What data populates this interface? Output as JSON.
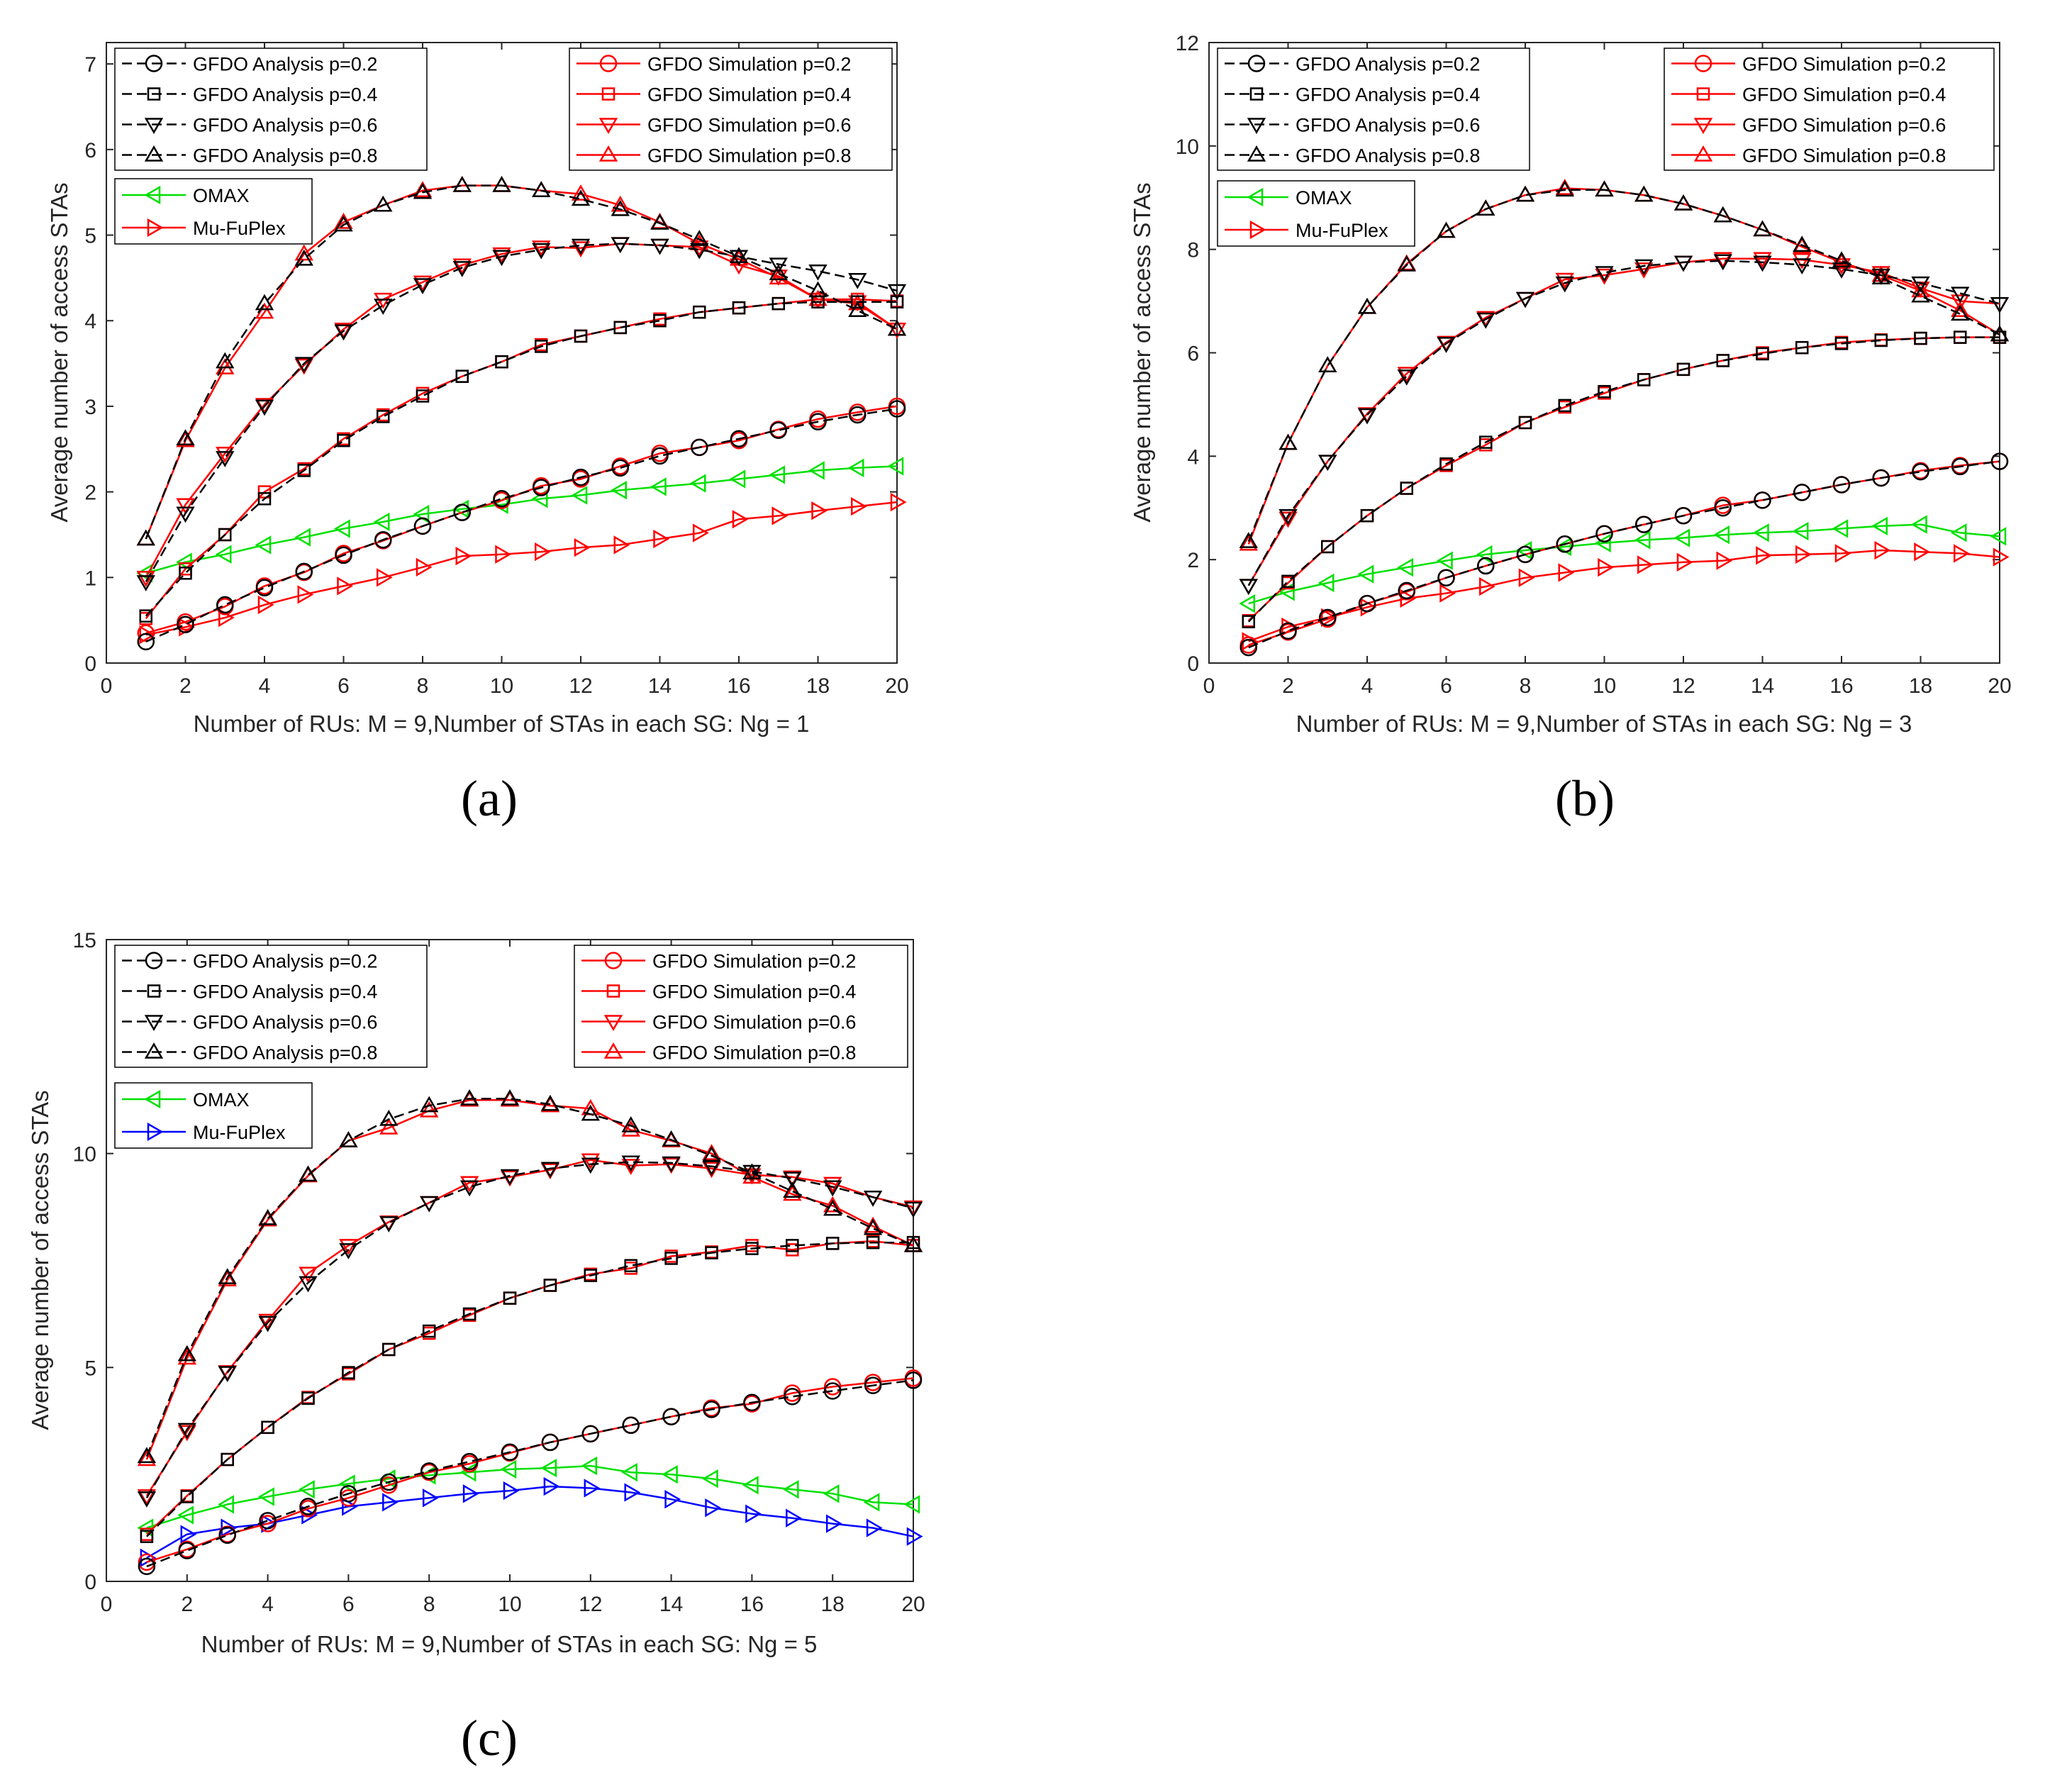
{
  "figure": {
    "panel_labels": [
      "(a)",
      "(b)",
      "(c)"
    ]
  },
  "colors": {
    "analysis": "#000000",
    "simulation": "#ff0000",
    "omax": "#00e000",
    "mufuplex_a": "#ff0000",
    "mufuplex_b": "#ff0000",
    "mufuplex_c": "#0000ff"
  },
  "chart_data": [
    {
      "type": "line",
      "panel": "(a)",
      "xlabel": "Number of RUs: M = 9,Number of STAs in each SG: Ng = 1",
      "ylabel": "Average number of access STAs",
      "xlim": [
        0,
        20
      ],
      "ylim": [
        0,
        7.25
      ],
      "xticks": [
        0,
        2,
        4,
        6,
        8,
        10,
        12,
        14,
        16,
        18,
        20
      ],
      "yticks": [
        0,
        1,
        2,
        3,
        4,
        5,
        6,
        7
      ],
      "grid": false,
      "legend1": [
        "GFDO Analysis p=0.2",
        "GFDO Analysis p=0.4",
        "GFDO Analysis p=0.6",
        "GFDO Analysis p=0.8"
      ],
      "legend2": [
        "GFDO Simulation p=0.2",
        "GFDO Simulation p=0.4",
        "GFDO Simulation p=0.6",
        "GFDO Simulation p=0.8"
      ],
      "legend3": [
        "OMAX",
        "Mu-FuPlex"
      ],
      "x": [
        1,
        2,
        3,
        4,
        5,
        6,
        7,
        8,
        9,
        10,
        11,
        12,
        13,
        14,
        15,
        16,
        17,
        18,
        19,
        20
      ],
      "series": [
        {
          "name": "GFDO Analysis p=0.2",
          "group": "analysis",
          "marker": "circle",
          "values": [
            0.25,
            0.45,
            0.68,
            0.88,
            1.07,
            1.26,
            1.44,
            1.6,
            1.76,
            1.92,
            2.05,
            2.17,
            2.28,
            2.42,
            2.52,
            2.62,
            2.72,
            2.82,
            2.9,
            2.97
          ]
        },
        {
          "name": "GFDO Analysis p=0.4",
          "group": "analysis",
          "marker": "square",
          "values": [
            0.55,
            1.05,
            1.5,
            1.92,
            2.25,
            2.6,
            2.88,
            3.12,
            3.35,
            3.52,
            3.7,
            3.82,
            3.92,
            4.0,
            4.1,
            4.15,
            4.2,
            4.22,
            4.22,
            4.22
          ]
        },
        {
          "name": "GFDO Analysis p=0.6",
          "group": "analysis",
          "marker": "triangle-down",
          "values": [
            0.95,
            1.75,
            2.4,
            3.0,
            3.5,
            3.88,
            4.18,
            4.42,
            4.62,
            4.75,
            4.83,
            4.88,
            4.9,
            4.88,
            4.83,
            4.75,
            4.66,
            4.58,
            4.48,
            4.35
          ]
        },
        {
          "name": "GFDO Analysis p=0.8",
          "group": "analysis",
          "marker": "triangle-up",
          "values": [
            1.45,
            2.62,
            3.52,
            4.2,
            4.72,
            5.12,
            5.35,
            5.5,
            5.58,
            5.58,
            5.52,
            5.42,
            5.3,
            5.14,
            4.95,
            4.75,
            4.55,
            4.35,
            4.12,
            3.9
          ]
        },
        {
          "name": "GFDO Simulation p=0.2",
          "group": "simulation",
          "marker": "circle",
          "values": [
            0.35,
            0.48,
            0.66,
            0.9,
            1.06,
            1.28,
            1.43,
            1.6,
            1.76,
            1.9,
            2.07,
            2.15,
            2.3,
            2.45,
            2.52,
            2.6,
            2.73,
            2.85,
            2.93,
            3.0
          ]
        },
        {
          "name": "GFDO Simulation p=0.4",
          "group": "simulation",
          "marker": "square",
          "values": [
            0.52,
            1.1,
            1.5,
            2.0,
            2.27,
            2.62,
            2.9,
            3.15,
            3.35,
            3.52,
            3.72,
            3.82,
            3.92,
            4.02,
            4.1,
            4.15,
            4.2,
            4.25,
            4.25,
            4.23
          ]
        },
        {
          "name": "GFDO Simulation p=0.6",
          "group": "simulation",
          "marker": "triangle-down",
          "values": [
            1.0,
            1.85,
            2.45,
            3.02,
            3.48,
            3.9,
            4.25,
            4.45,
            4.65,
            4.78,
            4.86,
            4.85,
            4.9,
            4.88,
            4.86,
            4.65,
            4.52,
            4.25,
            4.22,
            3.9
          ]
        },
        {
          "name": "GFDO Simulation p=0.8",
          "group": "simulation",
          "marker": "triangle-up",
          "values": [
            1.45,
            2.6,
            3.45,
            4.1,
            4.78,
            5.15,
            5.35,
            5.52,
            5.58,
            5.58,
            5.52,
            5.48,
            5.35,
            5.15,
            4.9,
            4.72,
            4.5,
            4.25,
            4.2,
            3.9
          ]
        },
        {
          "name": "OMAX",
          "group": "omax",
          "marker": "triangle-left",
          "values": [
            1.05,
            1.18,
            1.27,
            1.38,
            1.47,
            1.57,
            1.65,
            1.74,
            1.8,
            1.85,
            1.92,
            1.96,
            2.02,
            2.06,
            2.1,
            2.15,
            2.2,
            2.25,
            2.28,
            2.3
          ]
        },
        {
          "name": "Mu-FuPlex",
          "group": "mufuplex",
          "marker": "triangle-right",
          "values": [
            0.33,
            0.42,
            0.53,
            0.68,
            0.8,
            0.9,
            1.0,
            1.12,
            1.25,
            1.27,
            1.3,
            1.35,
            1.38,
            1.45,
            1.52,
            1.68,
            1.72,
            1.78,
            1.83,
            1.88
          ]
        }
      ]
    },
    {
      "type": "line",
      "panel": "(b)",
      "xlabel": "Number of RUs: M = 9,Number of STAs in each SG: Ng = 3",
      "ylabel": "Average number of access STAs",
      "xlim": [
        0,
        20
      ],
      "ylim": [
        0,
        12
      ],
      "xticks": [
        0,
        2,
        4,
        6,
        8,
        10,
        12,
        14,
        16,
        18,
        20
      ],
      "yticks": [
        0,
        2,
        4,
        6,
        8,
        10,
        12
      ],
      "grid": false,
      "legend1": [
        "GFDO Analysis p=0.2",
        "GFDO Analysis p=0.4",
        "GFDO Analysis p=0.6",
        "GFDO Analysis p=0.8"
      ],
      "legend2": [
        "GFDO Simulation p=0.2",
        "GFDO Simulation p=0.4",
        "GFDO Simulation p=0.6",
        "GFDO Simulation p=0.8"
      ],
      "legend3": [
        "OMAX",
        "Mu-FuPlex"
      ],
      "x": [
        1,
        2,
        3,
        4,
        5,
        6,
        7,
        8,
        9,
        10,
        11,
        12,
        13,
        14,
        15,
        16,
        17,
        18,
        19,
        20
      ],
      "series": [
        {
          "name": "GFDO Analysis p=0.2",
          "group": "analysis",
          "marker": "circle",
          "values": [
            0.3,
            0.62,
            0.88,
            1.15,
            1.4,
            1.65,
            1.88,
            2.1,
            2.3,
            2.5,
            2.68,
            2.85,
            3.0,
            3.15,
            3.3,
            3.45,
            3.58,
            3.7,
            3.8,
            3.9
          ]
        },
        {
          "name": "GFDO Analysis p=0.4",
          "group": "analysis",
          "marker": "square",
          "values": [
            0.8,
            1.58,
            2.25,
            2.85,
            3.38,
            3.85,
            4.27,
            4.65,
            4.98,
            5.25,
            5.48,
            5.68,
            5.85,
            5.98,
            6.1,
            6.18,
            6.24,
            6.28,
            6.3,
            6.3
          ]
        },
        {
          "name": "GFDO Analysis p=0.6",
          "group": "analysis",
          "marker": "triangle-down",
          "values": [
            1.5,
            2.85,
            3.9,
            4.8,
            5.55,
            6.18,
            6.65,
            7.05,
            7.35,
            7.55,
            7.68,
            7.75,
            7.78,
            7.75,
            7.7,
            7.62,
            7.5,
            7.35,
            7.15,
            6.95
          ]
        },
        {
          "name": "GFDO Analysis p=0.8",
          "group": "analysis",
          "marker": "triangle-up",
          "values": [
            2.35,
            4.25,
            5.75,
            6.88,
            7.7,
            8.35,
            8.78,
            9.05,
            9.15,
            9.15,
            9.05,
            8.88,
            8.65,
            8.38,
            8.08,
            7.78,
            7.45,
            7.1,
            6.75,
            6.35
          ]
        },
        {
          "name": "GFDO Simulation p=0.2",
          "group": "simulation",
          "marker": "circle",
          "values": [
            0.35,
            0.6,
            0.85,
            1.15,
            1.38,
            1.65,
            1.88,
            2.1,
            2.3,
            2.5,
            2.68,
            2.85,
            3.05,
            3.15,
            3.3,
            3.45,
            3.58,
            3.72,
            3.82,
            3.9
          ]
        },
        {
          "name": "GFDO Simulation p=0.4",
          "group": "simulation",
          "marker": "square",
          "values": [
            0.82,
            1.55,
            2.25,
            2.85,
            3.38,
            3.82,
            4.22,
            4.65,
            4.95,
            5.22,
            5.48,
            5.68,
            5.85,
            6.0,
            6.1,
            6.2,
            6.25,
            6.28,
            6.3,
            6.3
          ]
        },
        {
          "name": "GFDO Simulation p=0.6",
          "group": "simulation",
          "marker": "triangle-down",
          "values": [
            1.5,
            2.8,
            3.9,
            4.82,
            5.6,
            6.2,
            6.68,
            7.05,
            7.42,
            7.5,
            7.62,
            7.75,
            7.82,
            7.82,
            7.8,
            7.7,
            7.55,
            7.25,
            7.0,
            6.95
          ]
        },
        {
          "name": "GFDO Simulation p=0.8",
          "group": "simulation",
          "marker": "triangle-up",
          "values": [
            2.3,
            4.25,
            5.75,
            6.88,
            7.72,
            8.35,
            8.78,
            9.05,
            9.18,
            9.15,
            9.05,
            8.88,
            8.65,
            8.38,
            8.05,
            7.75,
            7.5,
            7.2,
            6.82,
            6.35
          ]
        },
        {
          "name": "OMAX",
          "group": "omax",
          "marker": "triangle-left",
          "values": [
            1.15,
            1.38,
            1.55,
            1.72,
            1.85,
            1.98,
            2.1,
            2.18,
            2.25,
            2.32,
            2.38,
            2.42,
            2.48,
            2.52,
            2.55,
            2.6,
            2.65,
            2.68,
            2.52,
            2.45
          ]
        },
        {
          "name": "Mu-FuPlex",
          "group": "mufuplex",
          "marker": "triangle-right",
          "values": [
            0.42,
            0.7,
            0.88,
            1.08,
            1.25,
            1.35,
            1.48,
            1.65,
            1.75,
            1.85,
            1.9,
            1.95,
            1.98,
            2.08,
            2.1,
            2.12,
            2.18,
            2.15,
            2.12,
            2.05
          ]
        }
      ]
    },
    {
      "type": "line",
      "panel": "(c)",
      "xlabel": "Number of RUs: M = 9,Number of STAs in each SG: Ng = 5",
      "ylabel": "Average number of access STAs",
      "xlim": [
        0,
        20
      ],
      "ylim": [
        0,
        15
      ],
      "xticks": [
        0,
        2,
        4,
        6,
        8,
        10,
        12,
        14,
        16,
        18,
        20
      ],
      "yticks": [
        0,
        5,
        10,
        15
      ],
      "grid": false,
      "legend1": [
        "GFDO Analysis p=0.2",
        "GFDO Analysis p=0.4",
        "GFDO Analysis p=0.6",
        "GFDO Analysis p=0.8"
      ],
      "legend2": [
        "GFDO Simulation p=0.2",
        "GFDO Simulation p=0.4",
        "GFDO Simulation p=0.6",
        "GFDO Simulation p=0.8"
      ],
      "legend3": [
        "OMAX",
        "Mu-FuPlex"
      ],
      "x": [
        1,
        2,
        3,
        4,
        5,
        6,
        7,
        8,
        9,
        10,
        11,
        12,
        13,
        14,
        15,
        16,
        17,
        18,
        19,
        20
      ],
      "series": [
        {
          "name": "GFDO Analysis p=0.2",
          "group": "analysis",
          "marker": "circle",
          "values": [
            0.35,
            0.72,
            1.08,
            1.42,
            1.75,
            2.05,
            2.32,
            2.58,
            2.8,
            3.02,
            3.25,
            3.45,
            3.65,
            3.85,
            4.02,
            4.18,
            4.32,
            4.45,
            4.58,
            4.7
          ]
        },
        {
          "name": "GFDO Analysis p=0.4",
          "group": "analysis",
          "marker": "square",
          "values": [
            1.05,
            1.98,
            2.85,
            3.6,
            4.28,
            4.88,
            5.42,
            5.85,
            6.25,
            6.62,
            6.92,
            7.15,
            7.38,
            7.55,
            7.68,
            7.78,
            7.85,
            7.9,
            7.92,
            7.92
          ]
        },
        {
          "name": "GFDO Analysis p=0.6",
          "group": "analysis",
          "marker": "triangle-down",
          "values": [
            1.95,
            3.55,
            4.88,
            6.05,
            6.98,
            7.75,
            8.38,
            8.85,
            9.22,
            9.48,
            9.65,
            9.75,
            9.8,
            9.78,
            9.7,
            9.58,
            9.42,
            9.22,
            8.98,
            8.72
          ]
        },
        {
          "name": "GFDO Analysis p=0.8",
          "group": "analysis",
          "marker": "triangle-up",
          "values": [
            2.92,
            5.3,
            7.1,
            8.48,
            9.5,
            10.3,
            10.8,
            11.12,
            11.28,
            11.28,
            11.15,
            10.92,
            10.65,
            10.32,
            9.95,
            9.55,
            9.12,
            8.7,
            8.25,
            7.85
          ]
        },
        {
          "name": "GFDO Simulation p=0.2",
          "group": "simulation",
          "marker": "circle",
          "values": [
            0.45,
            0.75,
            1.1,
            1.35,
            1.7,
            1.95,
            2.25,
            2.55,
            2.75,
            3.0,
            3.25,
            3.45,
            3.65,
            3.85,
            4.05,
            4.15,
            4.4,
            4.55,
            4.65,
            4.75
          ]
        },
        {
          "name": "GFDO Simulation p=0.4",
          "group": "simulation",
          "marker": "square",
          "values": [
            1.1,
            2.0,
            2.85,
            3.6,
            4.3,
            4.85,
            5.42,
            5.8,
            6.22,
            6.62,
            6.92,
            7.18,
            7.32,
            7.6,
            7.7,
            7.85,
            7.75,
            7.9,
            7.95,
            7.85
          ]
        },
        {
          "name": "GFDO Simulation p=0.6",
          "group": "simulation",
          "marker": "triangle-down",
          "values": [
            2.0,
            3.5,
            4.9,
            6.1,
            7.2,
            7.85,
            8.4,
            8.85,
            9.32,
            9.45,
            9.62,
            9.85,
            9.72,
            9.75,
            9.65,
            9.5,
            9.45,
            9.3,
            8.98,
            8.75
          ]
        },
        {
          "name": "GFDO Simulation p=0.8",
          "group": "simulation",
          "marker": "triangle-up",
          "values": [
            2.85,
            5.22,
            7.05,
            8.45,
            9.48,
            10.3,
            10.6,
            11.0,
            11.25,
            11.25,
            11.12,
            11.05,
            10.55,
            10.3,
            10.0,
            9.45,
            9.05,
            8.78,
            8.3,
            7.85
          ]
        },
        {
          "name": "OMAX",
          "group": "omax",
          "marker": "triangle-left",
          "values": [
            1.25,
            1.55,
            1.8,
            1.98,
            2.15,
            2.28,
            2.4,
            2.48,
            2.55,
            2.62,
            2.65,
            2.7,
            2.55,
            2.5,
            2.4,
            2.25,
            2.15,
            2.05,
            1.85,
            1.8
          ]
        },
        {
          "name": "Mu-FuPlex",
          "group": "mufuplex",
          "marker": "triangle-right",
          "values": [
            0.55,
            1.1,
            1.25,
            1.35,
            1.55,
            1.75,
            1.85,
            1.95,
            2.05,
            2.12,
            2.22,
            2.18,
            2.08,
            1.92,
            1.72,
            1.58,
            1.48,
            1.35,
            1.25,
            1.05
          ]
        }
      ]
    }
  ]
}
